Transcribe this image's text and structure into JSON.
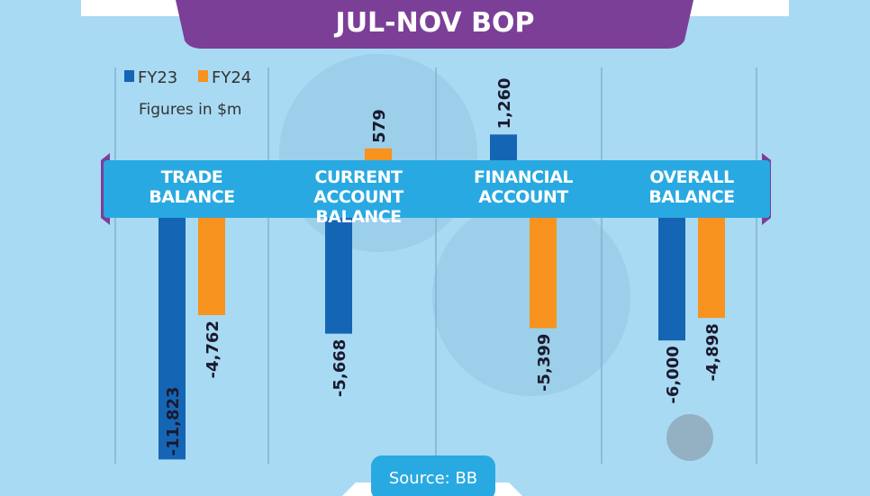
{
  "title": "JUL-NOV BOP",
  "note": "Figures in $m",
  "source": "Source: BB",
  "chart_data": {
    "type": "bar",
    "categories": [
      "TRADE BALANCE",
      "CURRENT ACCOUNT BALANCE",
      "FINANCIAL ACCOUNT",
      "OVERALL BALANCE"
    ],
    "series": [
      {
        "name": "FY23",
        "color": "#1565b5",
        "values": [
          -11823,
          -5668,
          1260,
          -6000
        ],
        "value_labels": [
          "-11,823",
          "-5,668",
          "1,260",
          "-6,000"
        ]
      },
      {
        "name": "FY24",
        "color": "#f7931e",
        "values": [
          -4762,
          579,
          -5399,
          -4898
        ],
        "value_labels": [
          "-4,762",
          "579",
          "-5,399",
          "-4,898"
        ]
      }
    ]
  }
}
